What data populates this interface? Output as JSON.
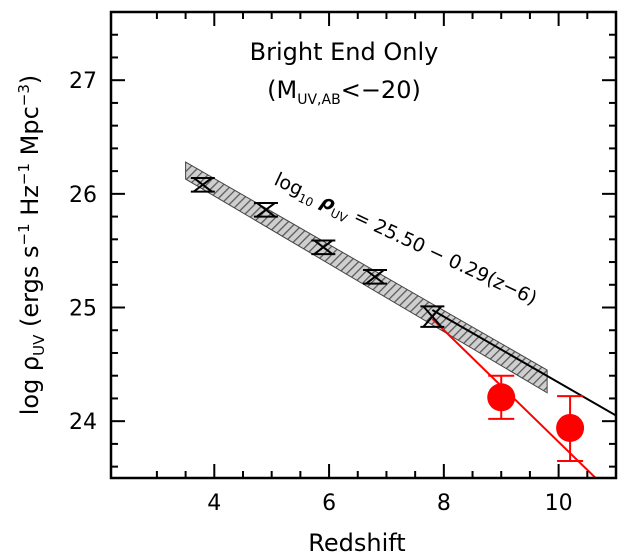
{
  "chart_data": {
    "type": "scatter",
    "title": "Bright End Only",
    "subtitle_prefix": "(M",
    "subtitle_sub": "UV,AB",
    "subtitle_suffix": "<−20)",
    "xlabel": "Redshift",
    "ylabel": "log ρ",
    "ylabel_sub": "UV",
    "ylabel_units": " (ergs s",
    "ylabel_sup1": "−1",
    "ylabel_mid": " Hz",
    "ylabel_sup2": "−1",
    "ylabel_mpc": " Mpc",
    "ylabel_sup3": "−3",
    "ylabel_close": ")",
    "xlim": [
      2.2,
      11.0
    ],
    "ylim": [
      23.5,
      27.6
    ],
    "x_ticks": [
      4,
      6,
      8,
      10
    ],
    "y_ticks": [
      24,
      25,
      26,
      27
    ],
    "x_tick_labels": [
      "4",
      "6",
      "8",
      "10"
    ],
    "y_tick_labels": [
      "24",
      "25",
      "26",
      "27"
    ],
    "annotation": {
      "prefix": "log",
      "sub": "10",
      "rho": " ρ",
      "rho_sub": "UV",
      "formula": " = 25.50 − 0.29(z−6)"
    },
    "fit_line": {
      "intercept": 25.5,
      "slope": -0.29,
      "z0": 6,
      "x_range": [
        7.8,
        11.0
      ],
      "color": "#000000"
    },
    "red_line": {
      "x": [
        7.8,
        10.95
      ],
      "y": [
        24.9,
        23.35
      ],
      "color": "#ff0000"
    },
    "band": {
      "x": [
        3.5,
        9.8
      ],
      "upper_at_x": [
        26.28,
        24.45
      ],
      "lower_at_x": [
        26.13,
        24.25
      ]
    },
    "series": [
      {
        "marker": "hourglass",
        "color": "#000000",
        "points": [
          {
            "x": 3.8,
            "y": 26.08,
            "err": 0.06
          },
          {
            "x": 4.9,
            "y": 25.86,
            "err": 0.06
          },
          {
            "x": 5.9,
            "y": 25.53,
            "err": 0.06
          },
          {
            "x": 6.8,
            "y": 25.27,
            "err": 0.06
          },
          {
            "x": 7.8,
            "y": 24.92,
            "err": 0.09
          }
        ]
      },
      {
        "marker": "circle",
        "color": "#ff0000",
        "points": [
          {
            "x": 9.0,
            "y": 24.21,
            "err_up": 0.19,
            "err_down": 0.19
          },
          {
            "x": 10.2,
            "y": 23.94,
            "err_up": 0.28,
            "err_down": 0.29
          }
        ]
      }
    ],
    "grid": false,
    "legend": "none"
  }
}
